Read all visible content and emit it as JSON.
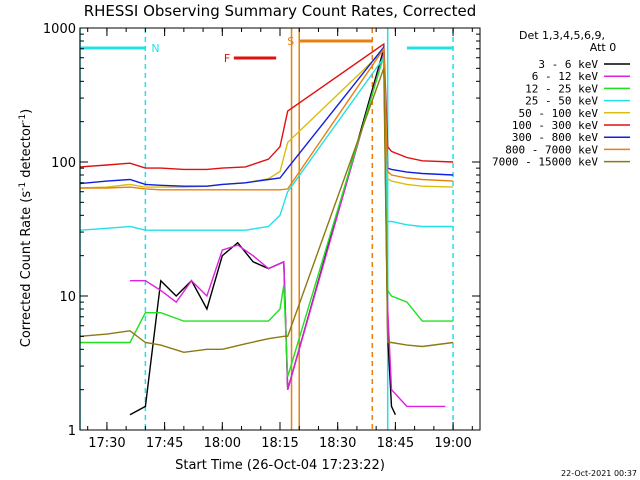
{
  "chart_data": {
    "type": "line",
    "title": "RHESSI Observing Summary Count Rates, Corrected",
    "xlabel": "Start Time (26-Oct-04 17:23:22)",
    "ylabel": "Corrected Count Rate (s",
    "ylabel_sup1": "-1",
    "ylabel_mid": " detector",
    "ylabel_sup2": "-1",
    "ylabel_end": ")",
    "y_scale": "log",
    "ylim": [
      1,
      1000
    ],
    "xlim": [
      "17:23",
      "19:07"
    ],
    "x_ticks": [
      "17:30",
      "17:45",
      "18:00",
      "18:15",
      "18:30",
      "18:45",
      "19:00"
    ],
    "y_ticks": [
      "1",
      "10",
      "100",
      "1000"
    ],
    "legend_position": "right",
    "legend_header": [
      "Det 1,3,4,5,6,9,",
      "Att 0"
    ],
    "footer": "22-Oct-2021 00:37",
    "flags": [
      {
        "label": "N",
        "color": "#22e0e8",
        "segments": [
          [
            "17:23",
            "17:40"
          ],
          [
            "18:48",
            "19:00"
          ]
        ]
      },
      {
        "label": "F",
        "color": "#e01010",
        "segments": [
          [
            "18:03",
            "18:14"
          ]
        ]
      },
      {
        "label": "S",
        "color": "#e88010",
        "segments": [
          [
            "18:20",
            "18:39"
          ]
        ]
      }
    ],
    "lines": [
      {
        "color": "#22e0e8",
        "dash": false,
        "x": "17:23"
      },
      {
        "color": "#22e0e8",
        "dash": true,
        "x": "17:40"
      },
      {
        "color": "#e88010",
        "dash": false,
        "x": "18:18"
      },
      {
        "color": "#e88010",
        "dash": false,
        "x": "18:20"
      },
      {
        "color": "#e88010",
        "dash": true,
        "x": "18:39"
      },
      {
        "color": "#22e0e8",
        "dash": false,
        "x": "18:43"
      },
      {
        "color": "#22e0e8",
        "dash": true,
        "x": "19:00"
      }
    ],
    "series": [
      {
        "name": "3 - 6 keV",
        "color": "#000000",
        "x": [
          "17:36",
          "17:40",
          "17:44",
          "17:48",
          "17:52",
          "17:56",
          "18:00",
          "18:04",
          "18:08",
          "18:12",
          "18:16",
          "18:17",
          "18:42",
          "18:43",
          "18:44",
          "18:45"
        ],
        "values": [
          1.3,
          1.5,
          13,
          10,
          13,
          8,
          20,
          25,
          18,
          16,
          18,
          2,
          700,
          5,
          1.5,
          1.3
        ]
      },
      {
        "name": "6 - 12 keV",
        "color": "#e020e0",
        "x": [
          "17:36",
          "17:40",
          "17:44",
          "17:48",
          "17:52",
          "17:56",
          "18:00",
          "18:04",
          "18:08",
          "18:12",
          "18:16",
          "18:17",
          "18:42",
          "18:43",
          "18:44",
          "18:48",
          "18:54",
          "18:58"
        ],
        "values": [
          13,
          13,
          11,
          9,
          13,
          10,
          22,
          24,
          20,
          16,
          18,
          2,
          650,
          8,
          2,
          1.5,
          1.5,
          1.5
        ]
      },
      {
        "name": "12 - 25 keV",
        "color": "#20e020",
        "x": [
          "17:23",
          "17:30",
          "17:36",
          "17:40",
          "17:44",
          "17:50",
          "17:56",
          "18:00",
          "18:06",
          "18:12",
          "18:15",
          "18:16",
          "18:17",
          "18:42",
          "18:43",
          "18:44",
          "18:48",
          "18:52",
          "19:00"
        ],
        "values": [
          4.5,
          4.5,
          4.5,
          7.5,
          7.5,
          6.5,
          6.5,
          6.5,
          6.5,
          6.5,
          8,
          12,
          2.5,
          620,
          11,
          10,
          9,
          6.5,
          6.5
        ]
      },
      {
        "name": "25 - 50 keV",
        "color": "#22e0e8",
        "x": [
          "17:23",
          "17:30",
          "17:36",
          "17:40",
          "17:44",
          "17:50",
          "17:56",
          "18:00",
          "18:06",
          "18:12",
          "18:15",
          "18:17",
          "18:42",
          "18:43",
          "18:44",
          "18:48",
          "18:52",
          "19:00"
        ],
        "values": [
          31,
          32,
          33,
          31,
          31,
          31,
          31,
          31,
          31,
          33,
          40,
          60,
          600,
          36,
          36,
          34,
          33,
          33
        ]
      },
      {
        "name": "50 - 100 keV",
        "color": "#d8c010",
        "x": [
          "17:23",
          "17:30",
          "17:36",
          "17:40",
          "17:44",
          "17:50",
          "17:56",
          "18:00",
          "18:06",
          "18:12",
          "18:15",
          "18:17",
          "18:42",
          "18:43",
          "18:44",
          "18:48",
          "18:52",
          "19:00"
        ],
        "values": [
          64,
          65,
          68,
          65,
          65,
          65,
          66,
          68,
          70,
          75,
          85,
          140,
          680,
          75,
          72,
          68,
          66,
          65
        ]
      },
      {
        "name": "100 - 300 keV",
        "color": "#e01010",
        "x": [
          "17:23",
          "17:30",
          "17:36",
          "17:40",
          "17:44",
          "17:50",
          "17:56",
          "18:00",
          "18:06",
          "18:12",
          "18:15",
          "18:17",
          "18:42",
          "18:43",
          "18:44",
          "18:48",
          "18:52",
          "19:00"
        ],
        "values": [
          92,
          95,
          98,
          90,
          90,
          88,
          88,
          90,
          92,
          105,
          130,
          240,
          760,
          130,
          120,
          108,
          102,
          100
        ]
      },
      {
        "name": "300 - 800 keV",
        "color": "#1020e0",
        "x": [
          "17:23",
          "17:30",
          "17:36",
          "17:40",
          "17:44",
          "17:50",
          "17:56",
          "18:00",
          "18:06",
          "18:12",
          "18:15",
          "18:17",
          "18:42",
          "18:43",
          "18:44",
          "18:48",
          "18:52",
          "19:00"
        ],
        "values": [
          69,
          72,
          74,
          68,
          67,
          66,
          66,
          68,
          70,
          74,
          76,
          90,
          720,
          90,
          88,
          84,
          82,
          80
        ]
      },
      {
        "name": "800 - 7000 keV",
        "color": "#e88010",
        "x": [
          "17:23",
          "17:30",
          "17:36",
          "17:40",
          "17:44",
          "17:50",
          "17:56",
          "18:00",
          "18:06",
          "18:12",
          "18:15",
          "18:17",
          "18:42",
          "18:43",
          "18:44",
          "18:48",
          "18:52",
          "19:00"
        ],
        "values": [
          64,
          64,
          65,
          63,
          62,
          62,
          62,
          62,
          62,
          62,
          62,
          63,
          700,
          85,
          80,
          76,
          74,
          72
        ]
      },
      {
        "name": "7000 - 15000 keV",
        "color": "#8a7a10",
        "x": [
          "17:23",
          "17:30",
          "17:36",
          "17:40",
          "17:44",
          "17:50",
          "17:56",
          "18:00",
          "18:06",
          "18:12",
          "18:16",
          "18:17",
          "18:42",
          "18:43",
          "18:44",
          "18:48",
          "18:52",
          "19:00"
        ],
        "values": [
          5,
          5.2,
          5.5,
          4.5,
          4.3,
          3.8,
          4,
          4,
          4.4,
          4.8,
          5,
          5,
          500,
          4.5,
          4.5,
          4.3,
          4.2,
          4.5
        ]
      }
    ]
  }
}
